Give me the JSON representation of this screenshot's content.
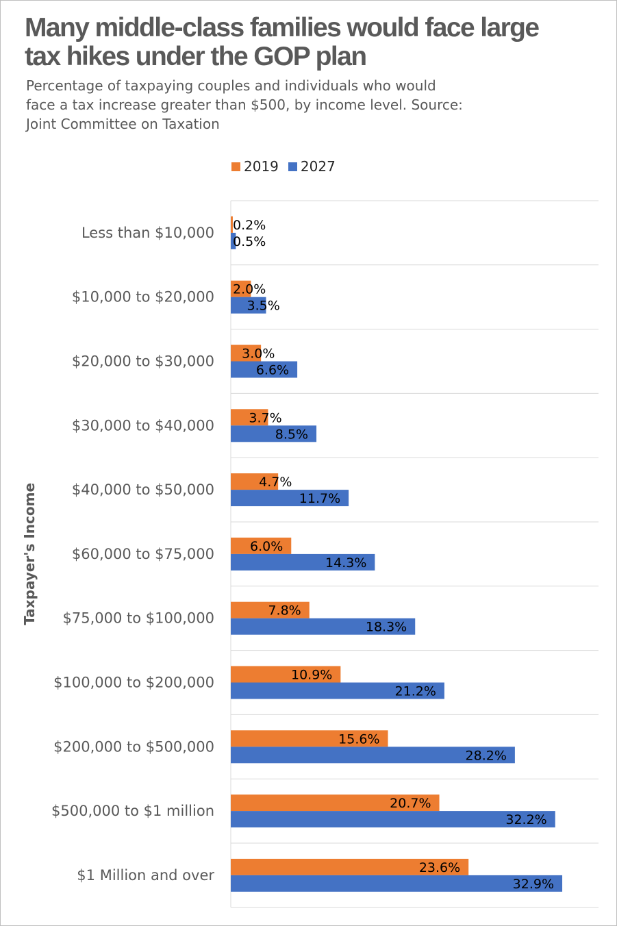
{
  "chart_data": {
    "type": "bar",
    "orientation": "horizontal",
    "title": "Many middle-class families would face large tax hikes under the GOP plan",
    "subtitle_lines": [
      "Percentage of taxpaying couples and individuals who would",
      "face a tax increase greater than $500, by income level.  Source:",
      "Joint Committee on Taxation"
    ],
    "ylabel": "Taxpayer's Income",
    "xlim": [
      0,
      36.5
    ],
    "grid": true,
    "legend_position": "top",
    "categories": [
      "Less than $10,000",
      "$10,000 to $20,000",
      "$20,000 to $30,000",
      "$30,000 to $40,000",
      "$40,000 to $50,000",
      "$60,000 to $75,000",
      "$75,000 to $100,000",
      "$100,000 to $200,000",
      "$200,000 to $500,000",
      "$500,000 to $1 million",
      "$1 Million and over"
    ],
    "series": [
      {
        "name": "2019",
        "color": "#ED7D31",
        "values": [
          0.2,
          2.0,
          3.0,
          3.7,
          4.7,
          6.0,
          7.8,
          10.9,
          15.6,
          20.7,
          23.6
        ],
        "labels": [
          "0.2%",
          "2.0%",
          "3.0%",
          "3.7%",
          "4.7%",
          "6.0%",
          "7.8%",
          "10.9%",
          "15.6%",
          "20.7%",
          "23.6%"
        ]
      },
      {
        "name": "2027",
        "color": "#4472C4",
        "values": [
          0.5,
          3.5,
          6.6,
          8.5,
          11.7,
          14.3,
          18.3,
          21.2,
          28.2,
          32.2,
          32.9
        ],
        "labels": [
          "0.5%",
          "3.5%",
          "6.6%",
          "8.5%",
          "11.7%",
          "14.3%",
          "18.3%",
          "21.2%",
          "28.2%",
          "32.2%",
          "32.9%"
        ]
      }
    ]
  }
}
